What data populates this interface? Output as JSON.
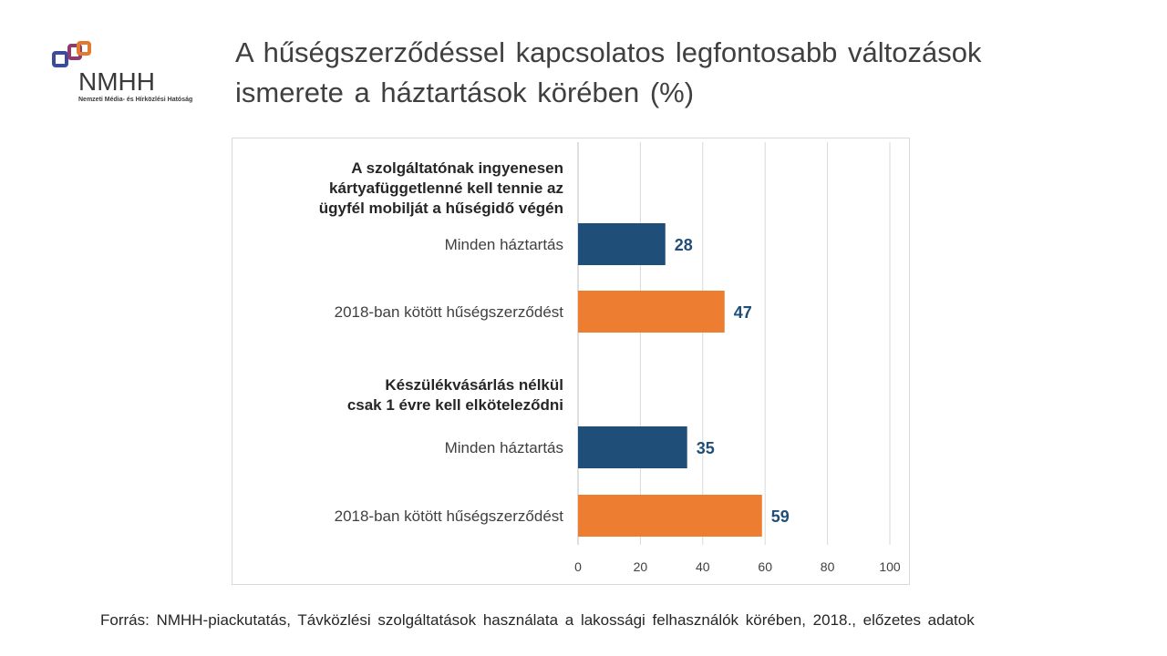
{
  "logo": {
    "text": "NMHH",
    "subtitle": "Nemzeti Média- és Hírközlési Hatóság",
    "colors": [
      "#8e3b6e",
      "#e07b2f",
      "#3c4b9a"
    ]
  },
  "title": "A hűségszerződéssel kapcsolatos legfontosabb változások ismerete a háztartások körében (%)",
  "source": "Forrás: NMHH-piackutatás, Távközlési szolgáltatások használata a lakossági felhasználók körében, 2018., előzetes adatok",
  "chart_data": {
    "type": "bar",
    "orientation": "horizontal",
    "xlim": [
      0,
      100
    ],
    "ticks": [
      "0",
      "20",
      "40",
      "60",
      "80",
      "100"
    ],
    "grid": true,
    "colors": {
      "all": "#1f4e79",
      "2018": "#ed7d31",
      "value_label": "#1f4e79"
    },
    "groups": [
      {
        "label_lines": [
          "A szolgáltatónak ingyenesen",
          "kártyafüggetlenné kell tennie az",
          "ügyfél mobilját a hűségidő végén"
        ],
        "bars": [
          {
            "label": "Minden háztartás",
            "value": 28,
            "color_key": "all"
          },
          {
            "label": "2018-ban kötött hűségszerződést",
            "value": 47,
            "color_key": "2018"
          }
        ]
      },
      {
        "label_lines": [
          "Készülékvásárlás nélkül",
          "csak 1 évre kell elköteleződni"
        ],
        "bars": [
          {
            "label": "Minden háztartás",
            "value": 35,
            "color_key": "all"
          },
          {
            "label": "2018-ban kötött hűségszerződést",
            "value": 59,
            "color_key": "2018"
          }
        ]
      }
    ]
  }
}
